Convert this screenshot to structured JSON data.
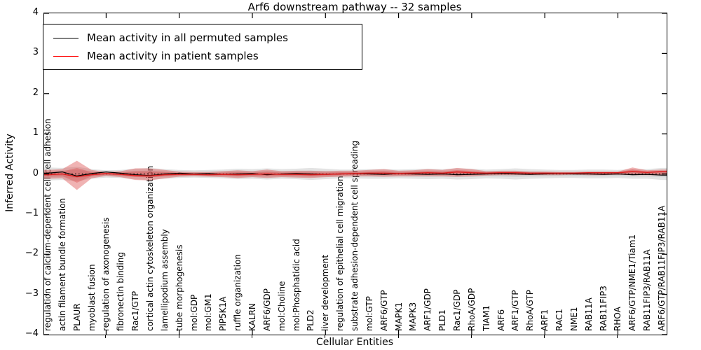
{
  "figure": {
    "title": "Arf6 downstream pathway -- 32 samples",
    "xlabel": "Cellular Entities",
    "ylabel": "Inferred Activity"
  },
  "legend": {
    "entries": [
      {
        "label": "Mean activity in all permuted samples",
        "color": "#000000"
      },
      {
        "label": "Mean activity in patient samples",
        "color": "#ff0000"
      }
    ]
  },
  "colors": {
    "permuted_line": "#000000",
    "patient_line": "#e02020",
    "permuted_band": "#9a9a9a",
    "patient_band": "#d94040",
    "zero_line": "#000000",
    "spine": "#000000",
    "background": "#ffffff"
  },
  "chart_data": {
    "type": "line",
    "title": "Arf6 downstream pathway -- 32 samples",
    "xlabel": "Cellular Entities",
    "ylabel": "Inferred Activity",
    "ylim": [
      -4,
      4
    ],
    "yticks": [
      4,
      3,
      2,
      1,
      0,
      -1,
      -2,
      -3,
      -4
    ],
    "yticklabels": [
      "4",
      "3",
      "2",
      "1",
      "0",
      "−1",
      "−2",
      "−3",
      "−4"
    ],
    "xtick_entity_numbers": [
      5,
      10,
      15,
      20,
      25,
      30,
      35,
      40
    ],
    "grid": false,
    "legend_position": "upper left",
    "zero_line": true,
    "categories": [
      "regulation of calcium-dependent cell-cell adhesion",
      "actin filament bundle formation",
      "PLAUR",
      "myoblast fusion",
      "regulation of axonogenesis",
      "fibronectin binding",
      "Rac1/GTP",
      "cortical actin cytoskeleton organization",
      "lamellipodium assembly",
      "tube morphogenesis",
      "mol:GDP",
      "mol:GM1",
      "PIP5K1A",
      "ruffle organization",
      "KALRN",
      "ARF6/GDP",
      "mol:Choline",
      "mol:Phosphatidic acid",
      "PLD2",
      "liver development",
      "regulation of epithelial cell migration",
      "substrate adhesion-dependent cell spreading",
      "mol:GTP",
      "ARF6/GTP",
      "MAPK1",
      "MAPK3",
      "ARF1/GDP",
      "PLD1",
      "Rac1/GDP",
      "RhoA/GDP",
      "TIAM1",
      "ARF6",
      "ARF1/GTP",
      "RhoA/GTP",
      "ARF1",
      "RAC1",
      "NME1",
      "RAB11A",
      "RAB11FIP3",
      "RHOA",
      "ARF6/GTP/NME1/Tiam1",
      "RAB11FIP3/RAB11A",
      "ARF6/GTP/RAB11FIP3/RAB11A"
    ],
    "series": [
      {
        "name": "Mean activity in all permuted samples",
        "color": "#000000",
        "values": [
          0.02,
          0.05,
          -0.05,
          0.01,
          0.05,
          0.02,
          -0.02,
          -0.04,
          0.0,
          0.02,
          0.0,
          0.01,
          -0.01,
          0.0,
          0.01,
          -0.02,
          0.0,
          0.01,
          0.0,
          -0.01,
          0.0,
          0.01,
          0.0,
          -0.01,
          0.01,
          0.0,
          -0.01,
          0.0,
          -0.02,
          -0.01,
          0.0,
          0.01,
          0.0,
          -0.01,
          0.0,
          0.01,
          0.0,
          0.0,
          -0.01,
          0.0,
          -0.02,
          -0.01,
          -0.03
        ]
      },
      {
        "name": "Mean activity in patient samples",
        "color": "#e02020",
        "values": [
          -0.02,
          0.0,
          -0.07,
          -0.02,
          0.01,
          -0.01,
          -0.04,
          -0.05,
          -0.02,
          -0.01,
          -0.01,
          -0.02,
          -0.01,
          -0.02,
          -0.01,
          0.0,
          -0.01,
          -0.01,
          -0.02,
          -0.01,
          0.0,
          0.01,
          0.02,
          0.02,
          0.01,
          0.02,
          0.03,
          0.02,
          0.05,
          0.03,
          0.02,
          0.03,
          0.03,
          0.02,
          0.02,
          0.02,
          0.02,
          0.03,
          0.03,
          0.03,
          0.06,
          0.04,
          0.06
        ]
      }
    ],
    "bands": [
      {
        "name": "permuted samples spread",
        "color": "#9a9a9a",
        "upper": [
          0.16,
          0.15,
          0.18,
          0.12,
          0.09,
          0.1,
          0.13,
          0.15,
          0.12,
          0.1,
          0.09,
          0.1,
          0.11,
          0.13,
          0.12,
          0.14,
          0.12,
          0.13,
          0.15,
          0.13,
          0.11,
          0.11,
          0.12,
          0.12,
          0.11,
          0.12,
          0.13,
          0.12,
          0.14,
          0.13,
          0.11,
          0.12,
          0.14,
          0.12,
          0.11,
          0.1,
          0.1,
          0.11,
          0.11,
          0.1,
          0.12,
          0.12,
          0.15
        ],
        "lower": [
          -0.16,
          -0.15,
          -0.18,
          -0.12,
          -0.09,
          -0.1,
          -0.13,
          -0.15,
          -0.12,
          -0.1,
          -0.09,
          -0.1,
          -0.11,
          -0.13,
          -0.12,
          -0.14,
          -0.12,
          -0.13,
          -0.15,
          -0.13,
          -0.11,
          -0.11,
          -0.12,
          -0.12,
          -0.11,
          -0.12,
          -0.13,
          -0.12,
          -0.14,
          -0.13,
          -0.11,
          -0.12,
          -0.14,
          -0.12,
          -0.11,
          -0.1,
          -0.1,
          -0.11,
          -0.11,
          -0.1,
          -0.12,
          -0.12,
          -0.15
        ]
      },
      {
        "name": "patient samples spread",
        "color": "#d94040",
        "upper": [
          0.1,
          0.12,
          0.33,
          0.1,
          0.05,
          0.07,
          0.14,
          0.14,
          0.1,
          0.06,
          0.05,
          0.05,
          0.07,
          0.09,
          0.07,
          0.11,
          0.07,
          0.08,
          0.08,
          0.07,
          0.08,
          0.08,
          0.1,
          0.12,
          0.08,
          0.09,
          0.12,
          0.1,
          0.15,
          0.12,
          0.07,
          0.08,
          0.08,
          0.06,
          0.06,
          0.05,
          0.05,
          0.06,
          0.06,
          0.06,
          0.16,
          0.09,
          0.11
        ],
        "lower": [
          -0.12,
          -0.11,
          -0.4,
          -0.11,
          -0.05,
          -0.08,
          -0.15,
          -0.16,
          -0.11,
          -0.07,
          -0.06,
          -0.07,
          -0.08,
          -0.1,
          -0.08,
          -0.1,
          -0.08,
          -0.09,
          -0.1,
          -0.08,
          -0.07,
          -0.06,
          -0.06,
          -0.07,
          -0.06,
          -0.06,
          -0.06,
          -0.06,
          -0.07,
          -0.06,
          -0.04,
          -0.03,
          -0.03,
          -0.03,
          -0.03,
          -0.03,
          -0.02,
          -0.03,
          -0.03,
          -0.02,
          -0.03,
          -0.03,
          -0.04
        ]
      }
    ]
  }
}
